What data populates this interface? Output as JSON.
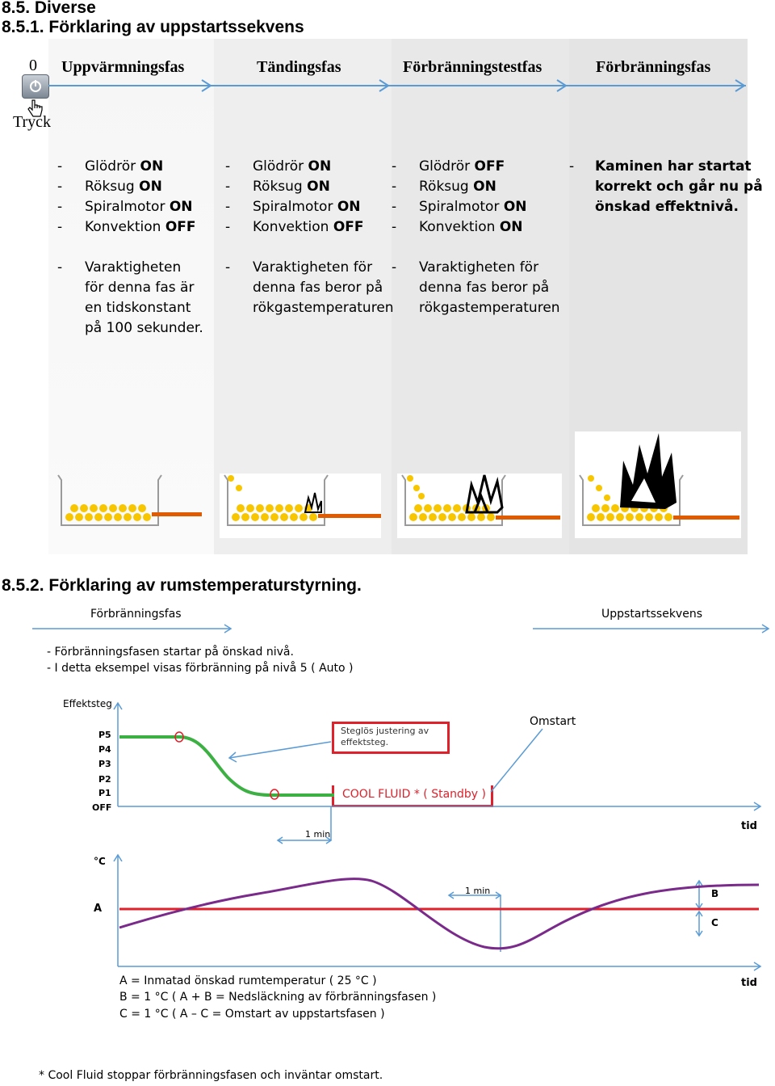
{
  "section": {
    "title": "8.5. Diverse",
    "subtitle": "8.5.1. Förklaring av uppstartssekvens",
    "subtitle2": "8.5.2. Förklaring av rumstemperaturstyrning."
  },
  "startup": {
    "button_label": "0",
    "press_label": "Tryck",
    "phases": [
      {
        "name": "Uppvärmningsfas",
        "items": [
          {
            "label": "Glödrör",
            "state": "ON"
          },
          {
            "label": "Röksug",
            "state": "ON"
          },
          {
            "label": "Spiralmotor",
            "state": "ON"
          },
          {
            "label": "Konvektion",
            "state": "OFF"
          }
        ],
        "duration": "Varaktigheten\nför denna fas är\nen tidskonstant\npå 100 sekunder."
      },
      {
        "name": "Tändingsfas",
        "items": [
          {
            "label": "Glödrör",
            "state": "ON"
          },
          {
            "label": "Röksug",
            "state": "ON"
          },
          {
            "label": "Spiralmotor",
            "state": "ON"
          },
          {
            "label": "Konvektion",
            "state": "OFF"
          }
        ],
        "duration": "Varaktigheten för\ndenna fas beror på\nrökgastemperaturen"
      },
      {
        "name": "Förbränningstestfas",
        "items": [
          {
            "label": "Glödrör",
            "state": "OFF"
          },
          {
            "label": "Röksug",
            "state": "ON"
          },
          {
            "label": "Spiralmotor",
            "state": "ON"
          },
          {
            "label": "Konvektion",
            "state": "ON"
          }
        ],
        "duration": "Varaktigheten för\ndenna fas beror på\nrökgastemperaturen"
      },
      {
        "name": "Förbränningsfas",
        "final_text": "Kaminen har startat\nkorrekt och går nu på\nönskad effektnivå."
      }
    ],
    "dash": "-"
  },
  "room": {
    "phase_left": "Förbränningsfas",
    "phase_right": "Uppstartssekvens",
    "note1": "- Förbränningsfasen startar på önskad nivå.",
    "note2": "- I detta eksempel visas förbränning på nivå 5 ( Auto )",
    "axis_top_label": "Effektsteg",
    "levels": [
      "P5",
      "P4",
      "P3",
      "P2",
      "P1",
      "OFF"
    ],
    "stepless": "Steglös justering av\neffektsteg.",
    "coolfluid": "COOL FLUID * ( Standby )",
    "restart": "Omstart",
    "one_min_a": "1 min",
    "one_min_b": "1 min",
    "tid_a": "tid",
    "tid_b": "tid",
    "temp_axis_label": "°C",
    "a_label": "A",
    "b_label": "B",
    "c_label": "C",
    "legend_a": "A = Inmatad önskad rumtemperatur ( 25 °C )",
    "legend_b": "B = 1 °C ( A + B = Nedsläckning av förbränningsfasen )",
    "legend_c": "C = 1 °C ( A – C = Omstart av uppstartsfasen )",
    "footnote": "* Cool Fluid stoppar förbränningsfasen och inväntar omstart."
  },
  "colors": {
    "arrow_blue": "#5a9bd5",
    "green": "#3cb043",
    "red": "#e0202a",
    "purple": "#7a2a8a",
    "pellet": "#f7c600",
    "tube": "#e05a00",
    "col_grey": "#efefef"
  }
}
